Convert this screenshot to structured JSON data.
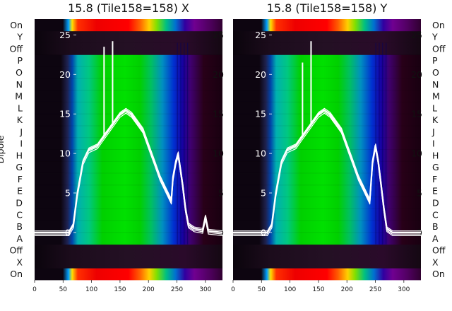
{
  "chart_data": [
    {
      "type": "heatmap",
      "title": "15.8 (Tile158=158) X",
      "ylabel": "Dipole",
      "xlim": [
        0,
        330
      ],
      "x_ticks": [
        0,
        50,
        100,
        150,
        200,
        250,
        300
      ],
      "dipole_rows": [
        "On",
        "X",
        "Off",
        "A",
        "B",
        "C",
        "D",
        "E",
        "F",
        "G",
        "H",
        "I",
        "J",
        "K",
        "L",
        "M",
        "N",
        "O",
        "P",
        "Off",
        "Y",
        "On"
      ],
      "overlay_ylim": [
        -6,
        27
      ],
      "overlay_y_ticks": [
        0,
        5,
        10,
        15,
        20,
        25
      ],
      "overlay_series": {
        "x": [
          0,
          60,
          68,
          75,
          85,
          95,
          110,
          120,
          130,
          140,
          150,
          160,
          170,
          180,
          190,
          200,
          210,
          220,
          230,
          240,
          243,
          248,
          252,
          256,
          260,
          265,
          270,
          280,
          295,
          300,
          305,
          330
        ],
        "y": [
          0,
          0,
          1,
          5,
          9,
          10.5,
          11,
          12,
          13,
          14,
          15,
          15.5,
          15,
          14,
          13,
          11,
          9,
          7,
          5.5,
          4,
          7,
          9,
          10,
          8,
          6,
          3,
          1,
          0.5,
          0.3,
          2,
          0.2,
          0
        ]
      },
      "spikes": [
        {
          "x": 122,
          "y": 23.5
        },
        {
          "x": 137,
          "y": 24.2
        }
      ],
      "colors": {
        "overlay": "#ffffff",
        "dark_band": "#1a0a14"
      }
    },
    {
      "type": "heatmap",
      "title": "15.8 (Tile158=158) Y",
      "xlim": [
        0,
        330
      ],
      "x_ticks": [
        0,
        50,
        100,
        150,
        200,
        250,
        300
      ],
      "dipole_rows": [
        "On",
        "X",
        "Off",
        "A",
        "B",
        "C",
        "D",
        "E",
        "F",
        "G",
        "H",
        "I",
        "J",
        "K",
        "L",
        "M",
        "N",
        "O",
        "P",
        "Off",
        "Y",
        "On"
      ],
      "overlay_ylim": [
        -6,
        27
      ],
      "overlay_y_ticks": [
        0,
        5,
        10,
        15,
        20,
        25
      ],
      "overlay_series": {
        "x": [
          0,
          60,
          68,
          75,
          85,
          95,
          110,
          120,
          130,
          140,
          150,
          160,
          170,
          180,
          190,
          200,
          210,
          220,
          230,
          240,
          245,
          250,
          255,
          260,
          265,
          270,
          280,
          330
        ],
        "y": [
          0,
          0,
          1,
          5,
          9,
          10.5,
          11,
          12,
          13,
          14,
          15,
          15.5,
          15,
          14,
          13,
          11,
          9,
          7,
          5.5,
          4,
          9,
          11,
          9,
          6,
          3,
          0.5,
          0,
          0
        ]
      },
      "spikes": [
        {
          "x": 122,
          "y": 21.5
        },
        {
          "x": 137,
          "y": 24.2
        }
      ],
      "colors": {
        "overlay": "#ffffff",
        "dark_band": "#1a0a14"
      }
    }
  ]
}
